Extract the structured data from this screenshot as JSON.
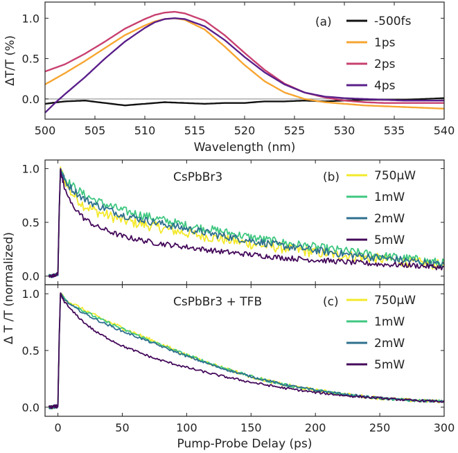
{
  "chart_data": [
    {
      "id": "a",
      "type": "line",
      "panel_label": "(a)",
      "xlabel": "Wavelength (nm)",
      "ylabel": "ΔT/T (%)",
      "xlim": [
        500,
        540
      ],
      "ylim": [
        -0.25,
        1.2
      ],
      "xticks": [
        500,
        505,
        510,
        515,
        520,
        525,
        530,
        535,
        540
      ],
      "yticks": [
        0.0,
        0.5,
        1.0
      ],
      "ytick_labels": [
        "0.0",
        "0.5",
        "1.0"
      ],
      "reference_line": 0,
      "legend_position": "top-right",
      "series": [
        {
          "name": "-500fs",
          "color": "#111111",
          "x": [
            500,
            502,
            504,
            506,
            508,
            510,
            512,
            514,
            516,
            518,
            520,
            522,
            524,
            526,
            528,
            530,
            532,
            534,
            536,
            538,
            540
          ],
          "y": [
            -0.06,
            -0.03,
            -0.02,
            -0.05,
            -0.08,
            -0.06,
            -0.04,
            -0.05,
            -0.06,
            -0.05,
            -0.05,
            -0.03,
            -0.03,
            -0.02,
            -0.03,
            -0.02,
            -0.01,
            -0.01,
            -0.01,
            0.0,
            0.01
          ]
        },
        {
          "name": "1ps",
          "color": "#f7a530",
          "x": [
            500,
            502,
            504,
            506,
            508,
            510,
            511,
            512,
            513,
            514,
            516,
            518,
            520,
            522,
            524,
            526,
            528,
            530,
            532,
            534,
            536,
            538,
            540
          ],
          "y": [
            0.18,
            0.32,
            0.47,
            0.63,
            0.79,
            0.91,
            0.96,
            0.99,
            1.0,
            0.98,
            0.86,
            0.65,
            0.42,
            0.22,
            0.08,
            0.0,
            -0.04,
            -0.06,
            -0.08,
            -0.09,
            -0.1,
            -0.11,
            -0.12
          ]
        },
        {
          "name": "2ps",
          "color": "#c84070",
          "x": [
            500,
            502,
            504,
            506,
            508,
            510,
            511,
            512,
            513,
            514,
            516,
            518,
            520,
            522,
            524,
            526,
            528,
            530,
            532,
            534,
            536,
            538,
            540
          ],
          "y": [
            0.34,
            0.43,
            0.56,
            0.71,
            0.87,
            0.99,
            1.04,
            1.07,
            1.08,
            1.06,
            0.97,
            0.79,
            0.57,
            0.36,
            0.19,
            0.08,
            0.02,
            -0.02,
            -0.04,
            -0.05,
            -0.05,
            -0.05,
            -0.05
          ]
        },
        {
          "name": "4ps",
          "color": "#5a1f8a",
          "x": [
            500,
            501,
            502,
            504,
            506,
            508,
            510,
            511,
            512,
            513,
            514,
            516,
            518,
            520,
            522,
            524,
            526,
            528,
            530,
            532,
            534,
            536,
            538,
            540
          ],
          "y": [
            -0.17,
            -0.05,
            0.06,
            0.27,
            0.5,
            0.71,
            0.88,
            0.95,
            0.99,
            1.0,
            0.99,
            0.9,
            0.73,
            0.52,
            0.33,
            0.18,
            0.08,
            0.03,
            0.01,
            0.0,
            -0.01,
            -0.02,
            -0.02,
            -0.02
          ]
        }
      ]
    },
    {
      "id": "b",
      "type": "line",
      "panel_label": "(b)",
      "sample_label": "CsPbBr3",
      "xlim": [
        -10,
        300
      ],
      "ylim": [
        -0.08,
        1.08
      ],
      "yticks": [
        0.0,
        0.5,
        1.0
      ],
      "ytick_labels": [
        "0.0",
        "0.5",
        "1.0"
      ],
      "legend_position": "top-right",
      "series": [
        {
          "name": "750μW",
          "color": "#f3e92a",
          "x": [
            -5,
            0,
            1,
            2,
            3,
            5,
            10,
            20,
            30,
            50,
            75,
            100,
            125,
            150,
            175,
            200,
            225,
            250,
            275,
            300
          ],
          "y": [
            0.0,
            0.02,
            0.6,
            1.0,
            0.95,
            0.9,
            0.78,
            0.66,
            0.6,
            0.52,
            0.46,
            0.4,
            0.35,
            0.3,
            0.26,
            0.22,
            0.19,
            0.16,
            0.13,
            0.1
          ]
        },
        {
          "name": "1mW",
          "color": "#3ec780",
          "x": [
            -5,
            0,
            1,
            2,
            3,
            5,
            10,
            20,
            30,
            50,
            75,
            100,
            125,
            150,
            175,
            200,
            225,
            250,
            275,
            300
          ],
          "y": [
            0.0,
            0.02,
            0.6,
            1.0,
            0.96,
            0.92,
            0.85,
            0.76,
            0.7,
            0.61,
            0.54,
            0.47,
            0.42,
            0.36,
            0.31,
            0.27,
            0.23,
            0.19,
            0.16,
            0.12
          ]
        },
        {
          "name": "2mW",
          "color": "#2e6f8e",
          "x": [
            -5,
            0,
            1,
            2,
            3,
            5,
            10,
            20,
            30,
            50,
            75,
            100,
            125,
            150,
            175,
            200,
            225,
            250,
            275,
            300
          ],
          "y": [
            0.0,
            0.02,
            0.6,
            1.0,
            0.95,
            0.9,
            0.82,
            0.72,
            0.66,
            0.57,
            0.5,
            0.44,
            0.38,
            0.33,
            0.28,
            0.24,
            0.2,
            0.17,
            0.14,
            0.1
          ]
        },
        {
          "name": "5mW",
          "color": "#44095a",
          "x": [
            -5,
            0,
            1,
            2,
            3,
            5,
            10,
            20,
            30,
            50,
            75,
            100,
            125,
            150,
            175,
            200,
            225,
            250,
            275,
            300
          ],
          "y": [
            0.0,
            0.02,
            0.6,
            1.0,
            0.92,
            0.82,
            0.68,
            0.54,
            0.46,
            0.37,
            0.31,
            0.27,
            0.23,
            0.2,
            0.17,
            0.15,
            0.13,
            0.11,
            0.1,
            0.08
          ]
        }
      ]
    },
    {
      "id": "c",
      "type": "line",
      "panel_label": "(c)",
      "sample_label": "CsPbBr3 + TFB",
      "xlabel": "Pump-Probe Delay (ps)",
      "ylabel": "Δ T /T (normalized)",
      "xlim": [
        -10,
        300
      ],
      "ylim": [
        -0.08,
        1.08
      ],
      "xticks": [
        0,
        50,
        100,
        150,
        200,
        250,
        300
      ],
      "yticks": [
        0.0,
        0.5,
        1.0
      ],
      "ytick_labels": [
        "0.0",
        "0.5",
        "1.0"
      ],
      "legend_position": "top-right",
      "series": [
        {
          "name": "750μW",
          "color": "#f3e92a",
          "x": [
            -5,
            0,
            1,
            2,
            3,
            5,
            10,
            20,
            30,
            50,
            75,
            100,
            125,
            150,
            175,
            200,
            225,
            250,
            275,
            300
          ],
          "y": [
            0.0,
            0.01,
            0.6,
            1.0,
            0.99,
            0.96,
            0.92,
            0.86,
            0.8,
            0.7,
            0.58,
            0.46,
            0.36,
            0.27,
            0.2,
            0.15,
            0.11,
            0.08,
            0.06,
            0.05
          ]
        },
        {
          "name": "1mW",
          "color": "#3ec780",
          "x": [
            -5,
            0,
            1,
            2,
            3,
            5,
            10,
            20,
            30,
            50,
            75,
            100,
            125,
            150,
            175,
            200,
            225,
            250,
            275,
            300
          ],
          "y": [
            0.0,
            0.01,
            0.6,
            1.0,
            0.99,
            0.96,
            0.91,
            0.85,
            0.79,
            0.69,
            0.57,
            0.46,
            0.36,
            0.27,
            0.2,
            0.15,
            0.11,
            0.08,
            0.06,
            0.05
          ]
        },
        {
          "name": "2mW",
          "color": "#2e6f8e",
          "x": [
            -5,
            0,
            1,
            2,
            3,
            5,
            10,
            20,
            30,
            50,
            75,
            100,
            125,
            150,
            175,
            200,
            225,
            250,
            275,
            300
          ],
          "y": [
            0.0,
            0.01,
            0.6,
            1.0,
            0.98,
            0.95,
            0.9,
            0.83,
            0.77,
            0.67,
            0.56,
            0.45,
            0.35,
            0.27,
            0.2,
            0.15,
            0.11,
            0.08,
            0.06,
            0.05
          ]
        },
        {
          "name": "5mW",
          "color": "#44095a",
          "x": [
            -5,
            0,
            1,
            2,
            3,
            5,
            10,
            20,
            30,
            50,
            75,
            100,
            125,
            150,
            175,
            200,
            225,
            250,
            275,
            300
          ],
          "y": [
            0.0,
            0.01,
            0.6,
            1.0,
            0.97,
            0.93,
            0.86,
            0.75,
            0.66,
            0.54,
            0.43,
            0.35,
            0.28,
            0.22,
            0.17,
            0.13,
            0.1,
            0.08,
            0.06,
            0.05
          ]
        }
      ]
    }
  ]
}
